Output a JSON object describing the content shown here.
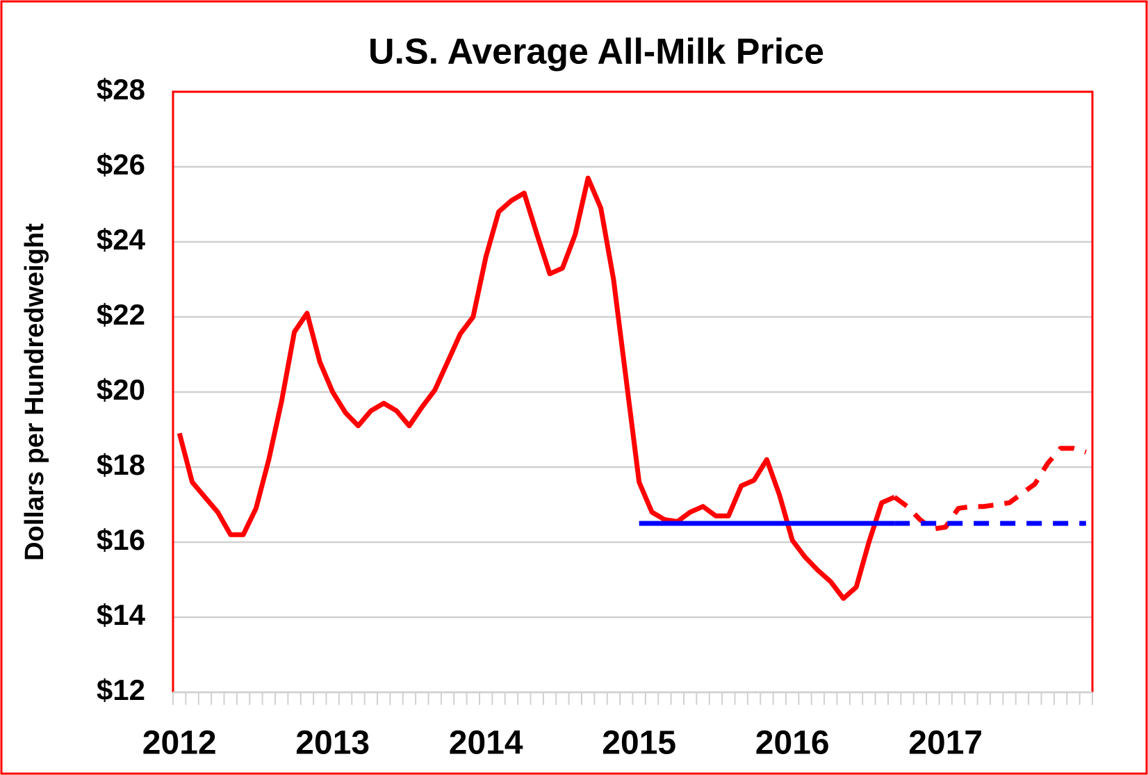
{
  "chart_data": {
    "type": "line",
    "title": "U.S. Average All-Milk Price",
    "y_label": "Dollars per Hundredweight",
    "categories": [
      "2012",
      null,
      null,
      null,
      null,
      null,
      null,
      null,
      null,
      null,
      null,
      null,
      "2013",
      null,
      null,
      null,
      null,
      null,
      null,
      null,
      null,
      null,
      null,
      null,
      "2014",
      null,
      null,
      null,
      null,
      null,
      null,
      null,
      null,
      null,
      null,
      null,
      "2015",
      null,
      null,
      null,
      null,
      null,
      null,
      null,
      null,
      null,
      null,
      null,
      "2016",
      null,
      null,
      null,
      null,
      null,
      null,
      null,
      null,
      null,
      null,
      null,
      "2017",
      null,
      null,
      null,
      null,
      null,
      null,
      null,
      null,
      null,
      null,
      null
    ],
    "ylim": [
      12,
      28
    ],
    "yticks": [
      {
        "value": 12,
        "label": "$12"
      },
      {
        "value": 14,
        "label": "$14"
      },
      {
        "value": 16,
        "label": "$16"
      },
      {
        "value": 18,
        "label": "$18"
      },
      {
        "value": 20,
        "label": "$20"
      },
      {
        "value": 22,
        "label": "$22"
      },
      {
        "value": 24,
        "label": "$24"
      },
      {
        "value": 26,
        "label": "$26"
      },
      {
        "value": 28,
        "label": "$28"
      }
    ],
    "grid": true,
    "series": [
      {
        "color": "#ff0000",
        "dashed": false,
        "values": [
          18.9,
          17.6,
          17.2,
          16.8,
          16.2,
          16.2,
          16.9,
          18.2,
          19.75,
          21.6,
          22.1,
          20.8,
          20.0,
          19.45,
          19.1,
          19.5,
          19.7,
          19.5,
          19.1,
          19.6,
          20.05,
          20.8,
          21.55,
          22.0,
          23.6,
          24.8,
          25.1,
          25.3,
          24.2,
          23.15,
          23.3,
          24.2,
          25.7,
          24.9,
          23.0,
          20.3,
          17.6,
          16.8,
          16.6,
          16.55,
          16.8,
          16.95,
          16.7,
          16.7,
          17.5,
          17.65,
          18.2,
          17.25,
          16.05,
          15.6,
          15.25,
          14.95,
          14.5,
          14.8,
          16.0,
          17.05,
          17.2,
          null,
          null,
          null,
          null,
          null,
          null,
          null,
          null,
          null,
          null,
          null,
          null,
          null,
          null,
          null
        ]
      },
      {
        "color": "#ff0000",
        "dashed": true,
        "values": [
          null,
          null,
          null,
          null,
          null,
          null,
          null,
          null,
          null,
          null,
          null,
          null,
          null,
          null,
          null,
          null,
          null,
          null,
          null,
          null,
          null,
          null,
          null,
          null,
          null,
          null,
          null,
          null,
          null,
          null,
          null,
          null,
          null,
          null,
          null,
          null,
          null,
          null,
          null,
          null,
          null,
          null,
          null,
          null,
          null,
          null,
          null,
          null,
          null,
          null,
          null,
          null,
          null,
          null,
          null,
          null,
          17.2,
          16.95,
          16.6,
          16.35,
          16.4,
          16.9,
          16.95,
          16.95,
          17.0,
          17.05,
          17.3,
          17.55,
          18.1,
          18.5,
          18.5,
          18.4
        ]
      },
      {
        "color": "#0000ff",
        "dashed": false,
        "values": [
          null,
          null,
          null,
          null,
          null,
          null,
          null,
          null,
          null,
          null,
          null,
          null,
          null,
          null,
          null,
          null,
          null,
          null,
          null,
          null,
          null,
          null,
          null,
          null,
          null,
          null,
          null,
          null,
          null,
          null,
          null,
          null,
          null,
          null,
          null,
          null,
          16.5,
          16.5,
          16.5,
          16.5,
          16.5,
          16.5,
          16.5,
          16.5,
          16.5,
          16.5,
          16.5,
          16.5,
          16.5,
          16.5,
          16.5,
          16.5,
          16.5,
          16.5,
          16.5,
          16.5,
          16.5,
          null,
          null,
          null,
          null,
          null,
          null,
          null,
          null,
          null,
          null,
          null,
          null,
          null,
          null,
          null
        ]
      },
      {
        "color": "#0000ff",
        "dashed": true,
        "values": [
          null,
          null,
          null,
          null,
          null,
          null,
          null,
          null,
          null,
          null,
          null,
          null,
          null,
          null,
          null,
          null,
          null,
          null,
          null,
          null,
          null,
          null,
          null,
          null,
          null,
          null,
          null,
          null,
          null,
          null,
          null,
          null,
          null,
          null,
          null,
          null,
          null,
          null,
          null,
          null,
          null,
          null,
          null,
          null,
          null,
          null,
          null,
          null,
          null,
          null,
          null,
          null,
          null,
          null,
          null,
          null,
          16.5,
          16.5,
          16.5,
          16.5,
          16.5,
          16.5,
          16.5,
          16.5,
          16.5,
          16.5,
          16.5,
          16.5,
          16.5,
          16.5,
          16.5,
          16.5
        ]
      }
    ]
  }
}
